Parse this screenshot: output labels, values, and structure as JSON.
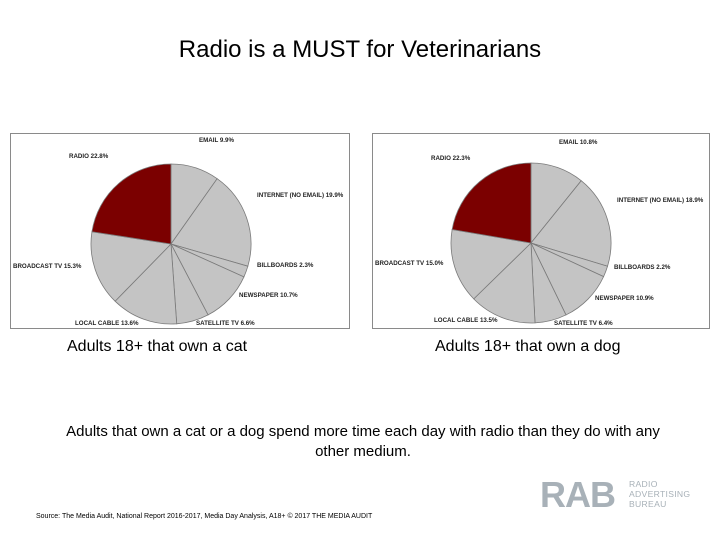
{
  "page": {
    "title": "Radio is a MUST for Veterinarians",
    "note": "Adults that own a cat or a dog spend more time each day with radio than they do with any other medium.",
    "source": "Source: The Media Audit, National Report 2016-2017, Media Day Analysis, A18+ © 2017 THE MEDIA AUDIT"
  },
  "logo": {
    "mark": "RAB",
    "words": [
      "RADIO",
      "ADVERTISING",
      "BUREAU"
    ]
  },
  "colors": {
    "radio": "#7b0000",
    "other": "#c4c4c4",
    "edge": "#7a7a7a"
  },
  "chart_data": [
    {
      "type": "pie",
      "caption": "Adults 18+ that own a cat",
      "slices": [
        {
          "label": "EMAIL 9.9%",
          "value": 9.9
        },
        {
          "label": "INTERNET (NO EMAIL) 19.9%",
          "value": 19.9
        },
        {
          "label": "BILLBOARDS 2.3%",
          "value": 2.3
        },
        {
          "label": "NEWSPAPER 10.7%",
          "value": 10.7
        },
        {
          "label": "SATELLITE TV 6.6%",
          "value": 6.6
        },
        {
          "label": "LOCAL CABLE 13.6%",
          "value": 13.6
        },
        {
          "label": "BROADCAST TV 15.3%",
          "value": 15.3
        },
        {
          "label": "RADIO 22.8%",
          "value": 22.8
        }
      ]
    },
    {
      "type": "pie",
      "caption": "Adults 18+ that own a dog",
      "slices": [
        {
          "label": "EMAIL 10.8%",
          "value": 10.8
        },
        {
          "label": "INTERNET (NO EMAIL) 18.9%",
          "value": 18.9
        },
        {
          "label": "BILLBOARDS 2.2%",
          "value": 2.2
        },
        {
          "label": "NEWSPAPER 10.9%",
          "value": 10.9
        },
        {
          "label": "SATELLITE TV 6.4%",
          "value": 6.4
        },
        {
          "label": "LOCAL CABLE 13.5%",
          "value": 13.5
        },
        {
          "label": "BROADCAST TV 15.0%",
          "value": 15.0
        },
        {
          "label": "RADIO 22.3%",
          "value": 22.3
        }
      ]
    }
  ]
}
